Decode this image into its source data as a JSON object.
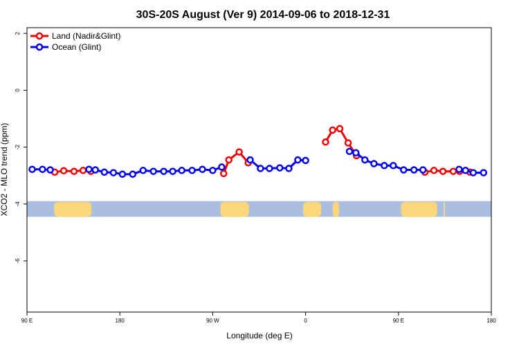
{
  "chart_data": {
    "type": "line",
    "title": "30S-20S August (Ver 9)   2014-09-06 to 2018-12-31",
    "xlabel": "Longitude (deg E)",
    "ylabel": "XCO2 - MLO trend (ppm)",
    "xlim": [
      90,
      450
    ],
    "ylim": [
      -7.8,
      2.2
    ],
    "x_ticks": [
      {
        "value": 90,
        "label": "90 E"
      },
      {
        "value": 162,
        "label": "180"
      },
      {
        "value": 234,
        "label": "90 W"
      },
      {
        "value": 306,
        "label": "0"
      },
      {
        "value": 378,
        "label": "90 E"
      },
      {
        "value": 450,
        "label": "180"
      }
    ],
    "y_ticks": [
      {
        "value": 2,
        "label": "2"
      },
      {
        "value": 0,
        "label": "0"
      },
      {
        "value": -2,
        "label": "-2"
      },
      {
        "value": -4,
        "label": "-4"
      },
      {
        "value": -6,
        "label": "-6"
      }
    ],
    "legend_position": "top-left",
    "grid": false,
    "series": [
      {
        "name": "Land (Nadir&Glint)",
        "color": "#ee0000",
        "segments": [
          [
            [
              111.5,
              -2.88
            ],
            [
              118.5,
              -2.83
            ],
            [
              126.5,
              -2.85
            ],
            [
              133.5,
              -2.82
            ],
            [
              139.5,
              -2.85
            ]
          ],
          [
            [
              242.5,
              -2.93
            ],
            [
              246.5,
              -2.45
            ],
            [
              254.5,
              -2.17
            ],
            [
              261.5,
              -2.55
            ]
          ],
          [
            [
              321.5,
              -1.82
            ],
            [
              327,
              -1.4
            ],
            [
              332.5,
              -1.35
            ],
            [
              339,
              -1.85
            ],
            [
              345.5,
              -2.3
            ]
          ],
          [
            [
              398.5,
              -2.88
            ],
            [
              405.5,
              -2.82
            ],
            [
              412.5,
              -2.85
            ],
            [
              420.5,
              -2.85
            ],
            [
              425.5,
              -2.85
            ],
            [
              433.5,
              -2.88
            ]
          ]
        ]
      },
      {
        "name": "Ocean (Glint)",
        "color": "#0000ee",
        "segments": [
          [
            [
              94,
              -2.78
            ],
            [
              102,
              -2.78
            ],
            [
              108,
              -2.8
            ]
          ],
          [
            [
              138,
              -2.78
            ],
            [
              143,
              -2.8
            ],
            [
              150,
              -2.88
            ],
            [
              157,
              -2.9
            ],
            [
              164,
              -2.95
            ],
            [
              172,
              -2.95
            ],
            [
              180,
              -2.82
            ],
            [
              188,
              -2.85
            ],
            [
              196,
              -2.85
            ],
            [
              203,
              -2.85
            ],
            [
              210,
              -2.82
            ],
            [
              218,
              -2.82
            ],
            [
              226,
              -2.78
            ],
            [
              234,
              -2.82
            ],
            [
              241,
              -2.7
            ]
          ],
          [
            [
              263,
              -2.45
            ],
            [
              271,
              -2.75
            ],
            [
              278,
              -2.75
            ],
            [
              286,
              -2.73
            ],
            [
              293,
              -2.75
            ],
            [
              300,
              -2.45
            ],
            [
              306,
              -2.47
            ]
          ],
          [
            [
              340,
              -2.15
            ],
            [
              345,
              -2.2
            ],
            [
              352,
              -2.45
            ],
            [
              359,
              -2.58
            ],
            [
              367,
              -2.65
            ],
            [
              374,
              -2.65
            ],
            [
              382,
              -2.8
            ],
            [
              390,
              -2.8
            ],
            [
              397,
              -2.8
            ]
          ],
          [
            [
              425,
              -2.78
            ],
            [
              430,
              -2.82
            ],
            [
              436,
              -2.9
            ],
            [
              444,
              -2.9
            ]
          ]
        ]
      }
    ],
    "land_mask": {
      "band_ylim": [
        -4.45,
        -3.9
      ],
      "ocean_color": "#a9bee0",
      "land_color": "#fbd77a",
      "land_ranges": [
        [
          111,
          140
        ],
        [
          240,
          262
        ],
        [
          304,
          318
        ],
        [
          327,
          332
        ],
        [
          380,
          408
        ],
        [
          413,
          414
        ]
      ]
    }
  }
}
